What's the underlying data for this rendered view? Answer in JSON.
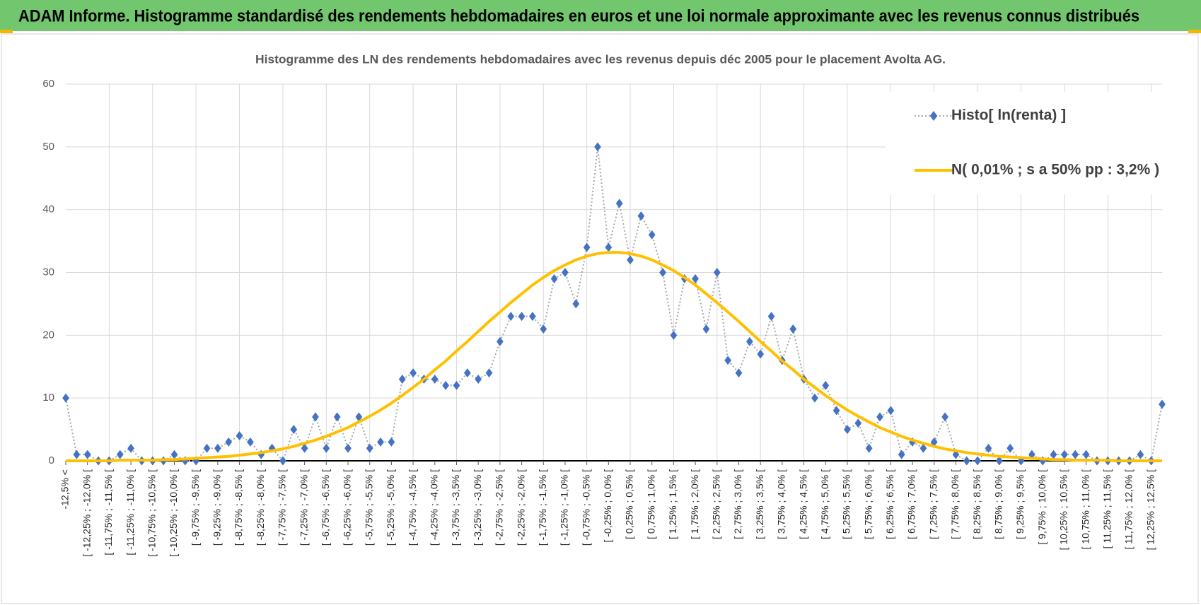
{
  "header": {
    "title": "ADAM Informe. Histogramme standardisé des rendements hebdomadaires en euros et une loi normale approximante avec les revenus connus distribués"
  },
  "chart_data": {
    "type": "line",
    "title": "Histogramme des LN des rendements hebdomadaires avec les revenus depuis déc 2005 pour le placement Avolta AG.",
    "categories": [
      "-12,5% <",
      null,
      "[ -12,25% ; -12,0% [",
      null,
      "[ -11,75% ; -11,5% [",
      null,
      "[ -11,25% ; -11,0% [",
      null,
      "[ -10,75% ; -10,5% [",
      null,
      "[ -10,25% ; -10,0% [",
      null,
      "[ -9,75% ; -9,5% [",
      null,
      "[ -9,25% ; -9,0% [",
      null,
      "[ -8,75% ; -8,5% [",
      null,
      "[ -8,25% ; -8,0% [",
      null,
      "[ -7,75% ; -7,5% [",
      null,
      "[ -7,25% ; -7,0% [",
      null,
      "[ -6,75% ; -6,5% [",
      null,
      "[ -6,25% ; -6,0% [",
      null,
      "[ -5,75% ; -5,5% [",
      null,
      "[ -5,25% ; -5,0% [",
      null,
      "[ -4,75% ; -4,5% [",
      null,
      "[ -4,25% ; -4,0% [",
      null,
      "[ -3,75% ; -3,5% [",
      null,
      "[ -3,25% ; -3,0% [",
      null,
      "[ -2,75% ; -2,5% [",
      null,
      "[ -2,25% ; -2,0% [",
      null,
      "[ -1,75% ; -1,5% [",
      null,
      "[ -1,25% ; -1,0% [",
      null,
      "[ -0,75% ; -0,5% [",
      null,
      "[ -0,25% ; 0,0% [",
      null,
      "[ 0,25% ; 0,5% [",
      null,
      "[ 0,75% ; 1,0% [",
      null,
      "[ 1,25% ; 1,5% [",
      null,
      "[ 1,75% ; 2,0% [",
      null,
      "[ 2,25% ; 2,5% [",
      null,
      "[ 2,75% ; 3,0% [",
      null,
      "[ 3,25% ; 3,5% [",
      null,
      "[ 3,75% ; 4,0% [",
      null,
      "[ 4,25% ; 4,5% [",
      null,
      "[ 4,75% ; 5,0% [",
      null,
      "[ 5,25% ; 5,5% [",
      null,
      "[ 5,75% ; 6,0% [",
      null,
      "[ 6,25% ; 6,5% [",
      null,
      "[ 6,75% ; 7,0% [",
      null,
      "[ 7,25% ; 7,5% [",
      null,
      "[ 7,75% ; 8,0% [",
      null,
      "[ 8,25% ; 8,5% [",
      null,
      "[ 8,75% ; 9,0% [",
      null,
      "[ 9,25% ; 9,5% [",
      null,
      "[ 9,75% ; 10,0% [",
      null,
      "[ 10,25% ; 10,5% [",
      null,
      "[ 10,75% ; 11,0% [",
      null,
      "[ 11,25% ; 11,5% [",
      null,
      "[ 11,75% ; 12,0% [",
      null,
      "[ 12,25% ; 12,5% [",
      null
    ],
    "series": [
      {
        "name": "Histo[ ln(renta) ]",
        "color": "#4472c4",
        "line_color": "#a6a6a6",
        "line_style": "dotted",
        "marker": "diamond",
        "values": [
          10,
          1,
          1,
          0,
          0,
          1,
          2,
          0,
          0,
          0,
          1,
          0,
          0,
          2,
          2,
          3,
          4,
          3,
          1,
          2,
          0,
          5,
          2,
          7,
          2,
          7,
          2,
          7,
          2,
          3,
          3,
          13,
          14,
          13,
          13,
          12,
          12,
          14,
          13,
          14,
          19,
          23,
          23,
          23,
          21,
          29,
          30,
          25,
          34,
          50,
          34,
          41,
          32,
          39,
          36,
          30,
          20,
          29,
          29,
          21,
          30,
          16,
          14,
          19,
          17,
          23,
          16,
          21,
          13,
          10,
          12,
          8,
          5,
          6,
          2,
          7,
          8,
          1,
          3,
          2,
          3,
          7,
          1,
          0,
          0,
          2,
          0,
          2,
          0,
          1,
          0,
          1,
          1,
          1,
          1,
          0,
          0,
          0,
          0,
          1,
          0,
          9
        ]
      },
      {
        "name": "N( 0,01% ; s a 50% pp : 3,2% )",
        "color": "#ffc000",
        "line_style": "solid",
        "marker": "none",
        "values": [
          0,
          0,
          0,
          0,
          0,
          0.1,
          0.1,
          0.1,
          0.1,
          0.2,
          0.2,
          0.3,
          0.4,
          0.5,
          0.6,
          0.7,
          0.9,
          1.1,
          1.3,
          1.6,
          1.9,
          2.3,
          2.8,
          3.3,
          3.9,
          4.6,
          5.3,
          6.2,
          7.1,
          8.1,
          9.2,
          10.4,
          11.7,
          13.0,
          14.5,
          15.9,
          17.5,
          19.0,
          20.6,
          22.2,
          23.7,
          25.2,
          26.6,
          28.0,
          29.2,
          30.3,
          31.2,
          32.0,
          32.6,
          33.0,
          33.2,
          33.2,
          33.0,
          32.6,
          32.0,
          31.2,
          30.3,
          29.2,
          28.0,
          26.6,
          25.2,
          23.7,
          22.2,
          20.6,
          19.0,
          17.5,
          15.9,
          14.5,
          13.0,
          11.7,
          10.4,
          9.2,
          8.1,
          7.1,
          6.2,
          5.3,
          4.6,
          3.9,
          3.3,
          2.8,
          2.3,
          1.9,
          1.6,
          1.3,
          1.1,
          0.9,
          0.7,
          0.6,
          0.5,
          0.4,
          0.3,
          0.2,
          0.2,
          0.1,
          0.1,
          0.1,
          0.1,
          0,
          0,
          0,
          0,
          0
        ]
      }
    ],
    "ylim": [
      0,
      60
    ],
    "yticks": [
      0,
      10,
      20,
      30,
      40,
      50,
      60
    ],
    "grid": true,
    "legend": "top-right"
  }
}
